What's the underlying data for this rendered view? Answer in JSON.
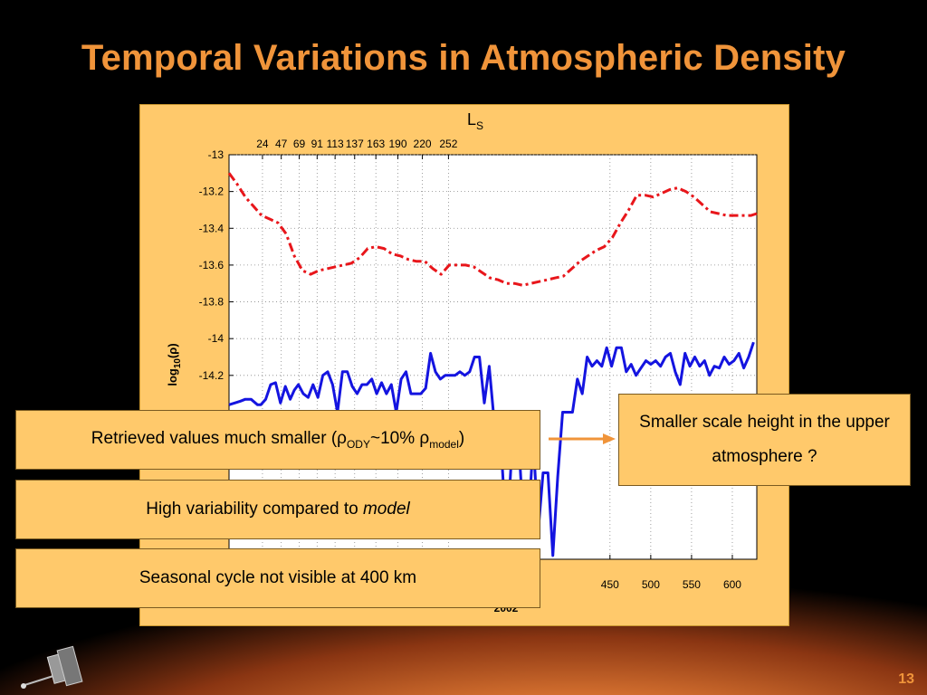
{
  "slide": {
    "title": "Temporal Variations in Atmospheric Density",
    "page_number": "13"
  },
  "callouts": {
    "retrieved": {
      "pre": "Retrieved values much smaller (ρ",
      "sub1": "ODY",
      "mid": "~10% ρ",
      "sub2": "model",
      "post": ")"
    },
    "variability": {
      "pre": "High variability compared to ",
      "em": "model"
    },
    "seasonal": "Seasonal cycle not visible at 400 km",
    "scale_height": "Smaller scale height in the upper atmosphere ?"
  },
  "chart_data": {
    "type": "line",
    "top_axis_label_main": "L",
    "top_axis_label_sub": "S",
    "top_ticks": [
      {
        "x": 24,
        "label": "24"
      },
      {
        "x": 47,
        "label": "47"
      },
      {
        "x": 69,
        "label": "69"
      },
      {
        "x": 91,
        "label": "91"
      },
      {
        "x": 113,
        "label": "113"
      },
      {
        "x": 137,
        "label": "137"
      },
      {
        "x": 163,
        "label": "163"
      },
      {
        "x": 190,
        "label": "190"
      },
      {
        "x": 220,
        "label": "220"
      },
      {
        "x": 252,
        "label": "252"
      }
    ],
    "bottom_ticks_visible": [
      {
        "x": 450,
        "label": "450"
      },
      {
        "x": 500,
        "label": "500"
      },
      {
        "x": 550,
        "label": "550"
      },
      {
        "x": 600,
        "label": "600"
      }
    ],
    "bottom_year_label": "2002",
    "ylabel_main": "log",
    "ylabel_sub": "10",
    "ylabel_tail": "(ρ)",
    "ylim": [
      -15.2,
      -13.0
    ],
    "xlim": [
      -17,
      630
    ],
    "yticks": [
      -13,
      -13.2,
      -13.4,
      -13.6,
      -13.8,
      -14,
      -14.2
    ],
    "ytick_labels": [
      "-13",
      "-13.2",
      "-13.4",
      "-13.6",
      "-13.8",
      "-14",
      "-14.2"
    ],
    "grid": true,
    "series": [
      {
        "style": "dash-dot",
        "color": "#e8161b",
        "x": [
          -17,
          -7,
          3,
          13,
          23,
          33,
          43,
          53,
          63,
          73,
          83,
          93,
          103,
          113,
          123,
          133,
          143,
          153,
          163,
          173,
          183,
          193,
          203,
          213,
          223,
          233,
          243,
          253,
          263,
          273,
          283,
          293,
          303,
          313,
          323,
          333,
          343,
          353,
          363,
          373,
          383,
          393,
          403,
          413,
          423,
          433,
          443,
          453,
          463,
          473,
          483,
          493,
          503,
          513,
          523,
          533,
          543,
          553,
          563,
          573,
          583,
          593,
          603,
          613,
          623,
          630
        ],
        "y": [
          -13.1,
          -13.16,
          -13.23,
          -13.28,
          -13.33,
          -13.35,
          -13.37,
          -13.43,
          -13.55,
          -13.63,
          -13.65,
          -13.63,
          -13.62,
          -13.61,
          -13.6,
          -13.59,
          -13.56,
          -13.51,
          -13.5,
          -13.51,
          -13.54,
          -13.55,
          -13.57,
          -13.58,
          -13.58,
          -13.62,
          -13.65,
          -13.6,
          -13.6,
          -13.6,
          -13.61,
          -13.64,
          -13.67,
          -13.68,
          -13.7,
          -13.7,
          -13.71,
          -13.7,
          -13.69,
          -13.68,
          -13.67,
          -13.66,
          -13.62,
          -13.58,
          -13.55,
          -13.52,
          -13.5,
          -13.45,
          -13.37,
          -13.3,
          -13.22,
          -13.22,
          -13.23,
          -13.21,
          -13.19,
          -13.18,
          -13.2,
          -13.23,
          -13.27,
          -13.31,
          -13.32,
          -13.33,
          -13.33,
          -13.33,
          -13.33,
          -13.32
        ]
      },
      {
        "style": "solid",
        "color": "#1414e0",
        "x": [
          -17,
          -10,
          -3,
          3,
          10,
          18,
          22,
          28,
          34,
          40,
          46,
          52,
          58,
          63,
          68,
          74,
          80,
          86,
          92,
          98,
          104,
          110,
          116,
          122,
          128,
          134,
          140,
          146,
          152,
          158,
          164,
          170,
          176,
          182,
          188,
          194,
          200,
          206,
          212,
          218,
          224,
          230,
          236,
          242,
          248,
          254,
          260,
          266,
          272,
          278,
          284,
          290,
          296,
          302,
          308,
          314,
          320,
          326,
          332,
          338,
          344,
          350,
          356,
          362,
          368,
          374,
          380,
          386,
          392,
          398,
          404,
          410,
          416,
          422,
          428,
          434,
          440,
          446,
          452,
          458,
          464,
          470,
          476,
          482,
          488,
          494,
          500,
          506,
          512,
          518,
          524,
          530,
          536,
          542,
          548,
          554,
          560,
          566,
          572,
          578,
          584,
          590,
          596,
          602,
          608,
          614,
          620,
          626
        ],
        "y": [
          -14.36,
          -14.35,
          -14.34,
          -14.33,
          -14.33,
          -14.36,
          -14.36,
          -14.33,
          -14.25,
          -14.24,
          -14.35,
          -14.26,
          -14.33,
          -14.28,
          -14.25,
          -14.3,
          -14.32,
          -14.25,
          -14.32,
          -14.2,
          -14.18,
          -14.25,
          -14.4,
          -14.18,
          -14.18,
          -14.26,
          -14.3,
          -14.25,
          -14.25,
          -14.22,
          -14.3,
          -14.24,
          -14.3,
          -14.25,
          -14.4,
          -14.22,
          -14.18,
          -14.3,
          -14.3,
          -14.3,
          -14.27,
          -14.08,
          -14.18,
          -14.22,
          -14.2,
          -14.2,
          -14.2,
          -14.18,
          -14.2,
          -14.18,
          -14.1,
          -14.1,
          -14.35,
          -14.15,
          -14.45,
          -14.4,
          -14.85,
          -14.9,
          -14.42,
          -14.55,
          -15.02,
          -15.0,
          -14.55,
          -15.05,
          -14.73,
          -14.73,
          -15.18,
          -14.75,
          -14.4,
          -14.4,
          -14.4,
          -14.22,
          -14.3,
          -14.1,
          -14.15,
          -14.12,
          -14.15,
          -14.05,
          -14.15,
          -14.05,
          -14.05,
          -14.18,
          -14.14,
          -14.2,
          -14.16,
          -14.12,
          -14.14,
          -14.12,
          -14.15,
          -14.1,
          -14.08,
          -14.18,
          -14.25,
          -14.08,
          -14.15,
          -14.1,
          -14.15,
          -14.12,
          -14.2,
          -14.15,
          -14.16,
          -14.1,
          -14.14,
          -14.12,
          -14.08,
          -14.16,
          -14.1,
          -14.02
        ]
      }
    ]
  }
}
